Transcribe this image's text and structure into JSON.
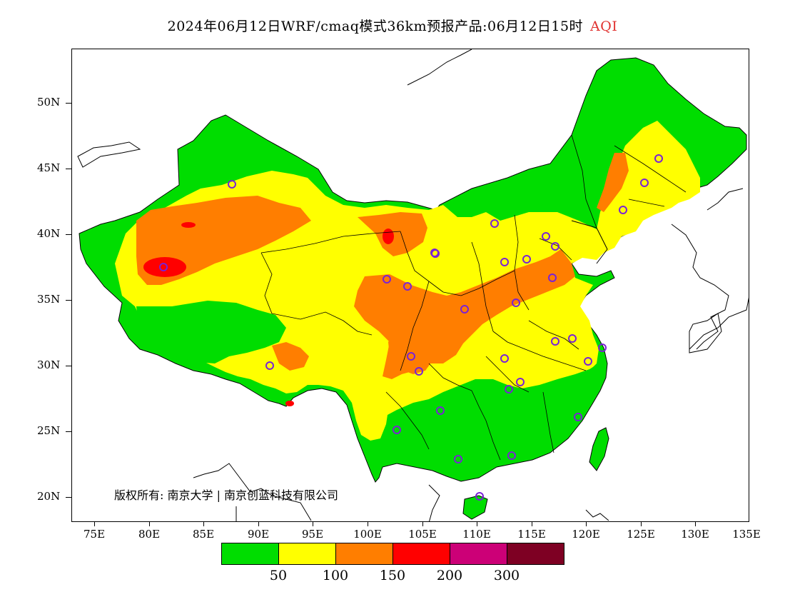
{
  "title": {
    "main": "2024年06月12日WRF/cmaq模式36km预报产品:06月12日15时",
    "variable": "AQI"
  },
  "colors": {
    "aqi_good": "#00dd00",
    "aqi_moderate": "#ffff00",
    "aqi_sensitive": "#ff7e00",
    "aqi_unhealthy": "#ff0000",
    "aqi_very_unhealthy": "#cc0077",
    "aqi_hazardous": "#7e0023",
    "station_marker": "#7a22d6"
  },
  "axes": {
    "lat_labels": [
      "50N",
      "45N",
      "40N",
      "35N",
      "30N",
      "25N",
      "20N"
    ],
    "lon_labels": [
      "75E",
      "80E",
      "85E",
      "90E",
      "95E",
      "100E",
      "105E",
      "110E",
      "115E",
      "120E",
      "125E",
      "130E",
      "135E"
    ]
  },
  "copyright": "版权所有: 南京大学 | 南京创蓝科技有限公司",
  "legend": {
    "labels": [
      "50",
      "100",
      "150",
      "200",
      "300"
    ]
  }
}
